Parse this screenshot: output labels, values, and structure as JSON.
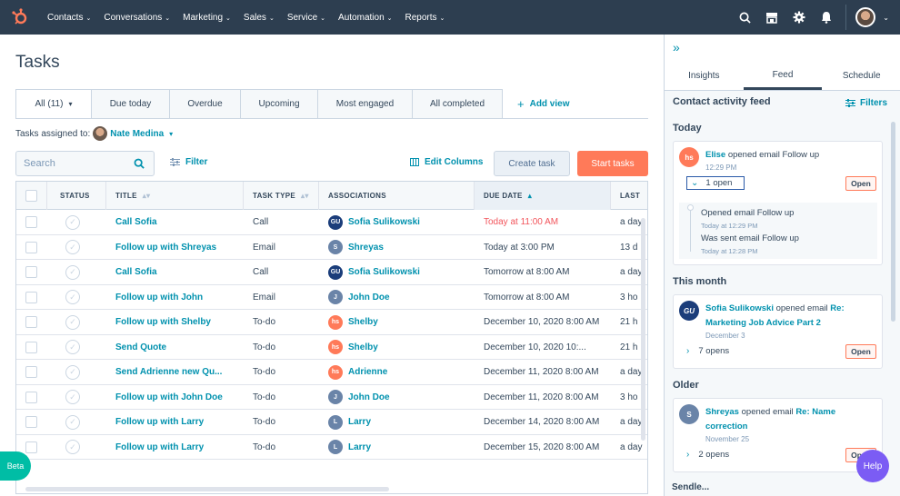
{
  "nav": {
    "items": [
      "Contacts",
      "Conversations",
      "Marketing",
      "Sales",
      "Service",
      "Automation",
      "Reports"
    ],
    "chevron": "⌄"
  },
  "page": {
    "title": "Tasks",
    "tabs": [
      "All (11)",
      "Due today",
      "Overdue",
      "Upcoming",
      "Most engaged",
      "All completed"
    ],
    "tab_dropdown": "▾",
    "add_view": "Add view",
    "assigned_label": "Tasks assigned to:",
    "assigned_owner": "Nate Medina",
    "search_placeholder": "Search",
    "filter": "Filter",
    "edit_columns": "Edit Columns",
    "create_task": "Create task",
    "start_tasks": "Start tasks"
  },
  "table": {
    "headers": [
      "STATUS",
      "TITLE",
      "TASK TYPE",
      "ASSOCIATIONS",
      "DUE DATE",
      "LAST"
    ],
    "rows": [
      {
        "title": "Call Sofia",
        "type": "Call",
        "assoc": "Sofia Sulikowski",
        "assoc_av": "GU",
        "assoc_color": "#1b3d7a",
        "due": "Today at 11:00 AM",
        "due_overdue": true,
        "last": "a day"
      },
      {
        "title": "Follow up with Shreyas",
        "type": "Email",
        "assoc": "Shreyas",
        "assoc_av": "S",
        "assoc_color": "#6a84a8",
        "due": "Today at 3:00 PM",
        "due_overdue": false,
        "last": "13 d"
      },
      {
        "title": "Call Sofia",
        "type": "Call",
        "assoc": "Sofia Sulikowski",
        "assoc_av": "GU",
        "assoc_color": "#1b3d7a",
        "due": "Tomorrow at 8:00 AM",
        "due_overdue": false,
        "last": "a day"
      },
      {
        "title": "Follow up with John",
        "type": "Email",
        "assoc": "John Doe",
        "assoc_av": "J",
        "assoc_color": "#6a84a8",
        "due": "Tomorrow at 8:00 AM",
        "due_overdue": false,
        "last": "3 ho"
      },
      {
        "title": "Follow up with Shelby",
        "type": "To-do",
        "assoc": "Shelby",
        "assoc_av": "hs",
        "assoc_color": "#ff7a59",
        "due": "December 10, 2020 8:00 AM",
        "due_overdue": false,
        "last": "21 h"
      },
      {
        "title": "Send Quote",
        "type": "To-do",
        "assoc": "Shelby",
        "assoc_av": "hs",
        "assoc_color": "#ff7a59",
        "due": "December 10, 2020 10:...",
        "due_overdue": false,
        "last": "21 h"
      },
      {
        "title": "Send Adrienne new Qu...",
        "type": "To-do",
        "assoc": "Adrienne",
        "assoc_av": "hs",
        "assoc_color": "#ff7a59",
        "due": "December 11, 2020 8:00 AM",
        "due_overdue": false,
        "last": "a day"
      },
      {
        "title": "Follow up with John Doe",
        "type": "To-do",
        "assoc": "John Doe",
        "assoc_av": "J",
        "assoc_color": "#6a84a8",
        "due": "December 11, 2020 8:00 AM",
        "due_overdue": false,
        "last": "3 ho"
      },
      {
        "title": "Follow up with Larry",
        "type": "To-do",
        "assoc": "Larry",
        "assoc_av": "L",
        "assoc_color": "#6a84a8",
        "due": "December 14, 2020 8:00 AM",
        "due_overdue": false,
        "last": "a day"
      },
      {
        "title": "Follow up with Larry",
        "type": "To-do",
        "assoc": "Larry",
        "assoc_av": "L",
        "assoc_color": "#6a84a8",
        "due": "December 15, 2020 8:00 AM",
        "due_overdue": false,
        "last": "a day"
      }
    ]
  },
  "panel": {
    "tabs": [
      "Insights",
      "Feed",
      "Schedule"
    ],
    "feed_title": "Contact activity feed",
    "filters": "Filters",
    "today_label": "Today",
    "this_month_label": "This month",
    "older_label": "Older",
    "card1": {
      "name": "Elise",
      "text": " opened email Follow up",
      "time": "12:29 PM",
      "opens": "1 open",
      "open_btn": "Open",
      "sub1": "Opened email Follow up",
      "sub1_time": "Today at 12:29 PM",
      "sub2": "Was sent email Follow up",
      "sub2_time": "Today at 12:28 PM"
    },
    "card2": {
      "name": "Sofia Sulikowski",
      "text": " opened email ",
      "link": "Re: Marketing Job Advice Part 2",
      "date": "December 3",
      "opens": "7 opens",
      "open_btn": "Open"
    },
    "card3": {
      "name": "Shreyas",
      "text": " opened email ",
      "link": "Re: Name correction",
      "date": "November 25",
      "opens": "2 opens",
      "open_btn": "Open"
    },
    "cutoff": "Sendle...",
    "beta": "Beta",
    "help": "Help"
  },
  "colors": {
    "nav_bg": "#2d3e50",
    "accent": "#0091ae",
    "primary": "#ff7a59",
    "overdue": "#f2545b"
  }
}
